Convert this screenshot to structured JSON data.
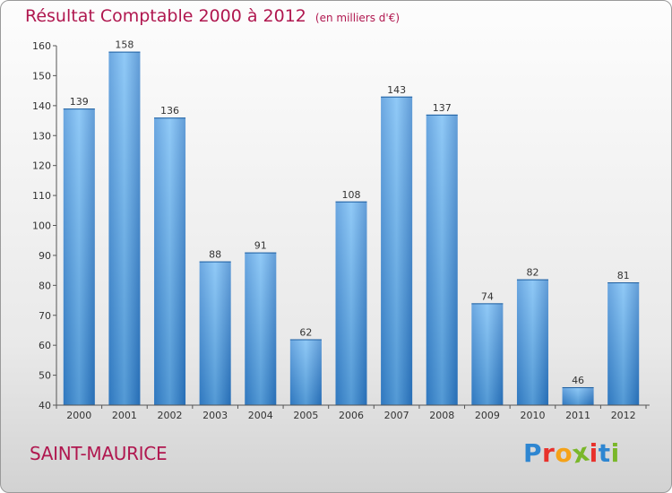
{
  "chart_data": {
    "type": "bar",
    "title": "Résultat Comptable 2000 à 2012",
    "subtitle": "(en milliers d'€)",
    "categories": [
      "2000",
      "2001",
      "2002",
      "2003",
      "2004",
      "2005",
      "2006",
      "2007",
      "2008",
      "2009",
      "2010",
      "2011",
      "2012"
    ],
    "values": [
      139,
      158,
      136,
      88,
      91,
      62,
      108,
      143,
      137,
      74,
      82,
      46,
      81
    ],
    "ylim": [
      40,
      160
    ],
    "yticks": [
      40,
      50,
      60,
      70,
      80,
      90,
      100,
      110,
      120,
      130,
      140,
      150,
      160
    ],
    "xlabel": "",
    "ylabel": "",
    "grid": false,
    "bar_color": "#4a9be0"
  },
  "footer": {
    "place": "SAINT-MAURICE",
    "brand": [
      "P",
      "r",
      "o",
      "x",
      "i",
      "t",
      "i"
    ],
    "brand_colors": [
      "#2e86d1",
      "#e8312b",
      "#f5a218",
      "#7ab72a",
      "#e8312b",
      "#2e86d1",
      "#7ab72a"
    ]
  },
  "colors": {
    "title": "#b0174f"
  }
}
